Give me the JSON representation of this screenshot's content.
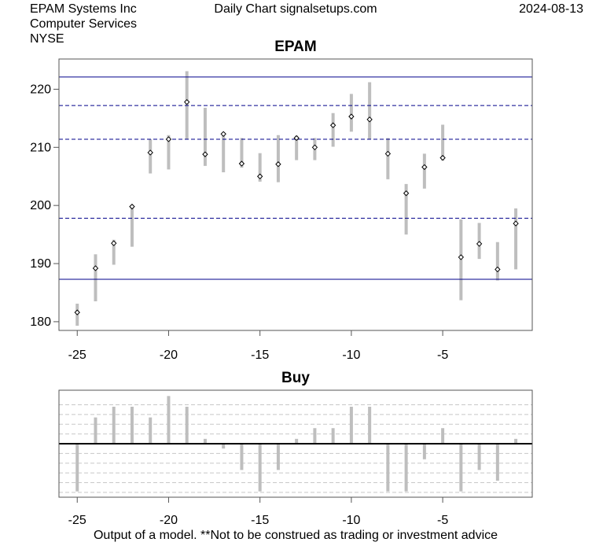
{
  "header": {
    "company": "EPAM Systems Inc",
    "sector": "Computer Services",
    "exchange": "NYSE",
    "source": "Daily Chart signalsetups.com",
    "date": "2024-08-13"
  },
  "footer": {
    "disclaimer": "Output of a model. **Not to be construed as trading or investment advice"
  },
  "chart_data": [
    {
      "type": "range",
      "title": "EPAM",
      "xlim": [
        -26,
        -0.1
      ],
      "ylim": [
        178.5,
        225.2
      ],
      "x_ticks": [
        -25,
        -20,
        -15,
        -10,
        -5
      ],
      "y_ticks": [
        180,
        190,
        200,
        210,
        220
      ],
      "range_color": "#bebebe",
      "line_color": "#00008b",
      "solid_lines": [
        222.1,
        187.3
      ],
      "dashed_lines": [
        217.2,
        211.4,
        197.8
      ],
      "bars": [
        {
          "x": -25,
          "low": 179.3,
          "high": 183.1,
          "close": 181.6
        },
        {
          "x": -24,
          "low": 183.5,
          "high": 191.6,
          "close": 189.2
        },
        {
          "x": -23,
          "low": 189.8,
          "high": 194.1,
          "close": 193.5
        },
        {
          "x": -22,
          "low": 192.9,
          "high": 200.1,
          "close": 199.8
        },
        {
          "x": -21,
          "low": 205.5,
          "high": 211.4,
          "close": 209.1
        },
        {
          "x": -20,
          "low": 206.2,
          "high": 212.1,
          "close": 211.4
        },
        {
          "x": -19,
          "low": 211.4,
          "high": 223.1,
          "close": 217.8
        },
        {
          "x": -18,
          "low": 206.8,
          "high": 216.8,
          "close": 208.8
        },
        {
          "x": -17,
          "low": 205.7,
          "high": 212.6,
          "close": 212.3
        },
        {
          "x": -16,
          "low": 206.5,
          "high": 211.6,
          "close": 207.2
        },
        {
          "x": -15,
          "low": 204.1,
          "high": 209.0,
          "close": 205.0
        },
        {
          "x": -14,
          "low": 204.0,
          "high": 212.1,
          "close": 207.1
        },
        {
          "x": -13,
          "low": 207.8,
          "high": 212.0,
          "close": 211.6
        },
        {
          "x": -12,
          "low": 207.8,
          "high": 211.6,
          "close": 210.0
        },
        {
          "x": -11,
          "low": 210.1,
          "high": 215.9,
          "close": 213.8
        },
        {
          "x": -10,
          "low": 212.7,
          "high": 219.2,
          "close": 215.3
        },
        {
          "x": -9,
          "low": 211.4,
          "high": 221.2,
          "close": 214.8
        },
        {
          "x": -8,
          "low": 204.5,
          "high": 211.6,
          "close": 208.9
        },
        {
          "x": -7,
          "low": 195.0,
          "high": 203.7,
          "close": 202.1
        },
        {
          "x": -6,
          "low": 202.9,
          "high": 208.9,
          "close": 206.6
        },
        {
          "x": -5,
          "low": 207.7,
          "high": 213.9,
          "close": 208.2
        },
        {
          "x": -4,
          "low": 183.7,
          "high": 197.6,
          "close": 191.1
        },
        {
          "x": -3,
          "low": 190.8,
          "high": 197.0,
          "close": 193.4
        },
        {
          "x": -2,
          "low": 187.1,
          "high": 193.7,
          "close": 189.0
        },
        {
          "x": -1,
          "low": 189.0,
          "high": 199.5,
          "close": 196.9
        }
      ]
    },
    {
      "type": "bar",
      "title": "Buy",
      "xlim": [
        -26,
        -0.1
      ],
      "ylim": [
        -1.1,
        1.1
      ],
      "x_ticks": [
        -25,
        -20,
        -15,
        -10,
        -5
      ],
      "bar_color": "#bebebe",
      "gridlines": [
        -1.0,
        -0.8,
        -0.6,
        -0.4,
        -0.2,
        0.2,
        0.4,
        0.6,
        0.8
      ],
      "x": [
        -25,
        -24,
        -23,
        -22,
        -21,
        -20,
        -19,
        -18,
        -17,
        -16,
        -15,
        -14,
        -13,
        -12,
        -11,
        -10,
        -9,
        -8,
        -7,
        -6,
        -5,
        -4,
        -3,
        -2,
        -1
      ],
      "values": [
        -0.98,
        0.54,
        0.76,
        0.76,
        0.54,
        0.98,
        0.76,
        0.1,
        -0.1,
        -0.54,
        -0.98,
        -0.54,
        0.1,
        0.32,
        0.32,
        0.76,
        0.76,
        -0.98,
        -0.98,
        -0.32,
        0.32,
        -0.98,
        -0.54,
        -0.76,
        0.1
      ]
    }
  ]
}
